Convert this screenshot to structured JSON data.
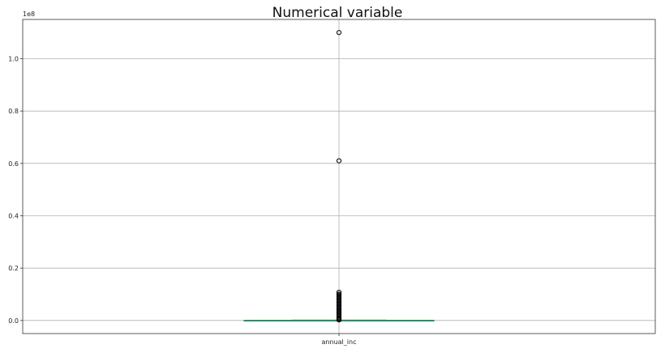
{
  "chart_data": {
    "type": "box",
    "title": "Numerical variable",
    "offset_label": "1e8",
    "xlabel": "",
    "ylabel": "",
    "ylim": [
      -0.05,
      1.15
    ],
    "yticks": [
      0.0,
      0.2,
      0.4,
      0.6,
      0.8,
      1.0
    ],
    "ytick_labels": [
      "0.0",
      "0.2",
      "0.4",
      "0.6",
      "0.8",
      "1.0"
    ],
    "grid": true,
    "categories": [
      "annual_inc"
    ],
    "series": [
      {
        "category": "annual_inc",
        "q1": 0.00045,
        "median": 0.0006,
        "q3": 0.0009,
        "whisker_low": 0.0,
        "whisker_high": 0.00157,
        "outliers": [
          1.1,
          0.61,
          0.108,
          0.101,
          0.097,
          0.093,
          0.089,
          0.085,
          0.081,
          0.077,
          0.073,
          0.069,
          0.065,
          0.061,
          0.057,
          0.053,
          0.049,
          0.045,
          0.041,
          0.037,
          0.033,
          0.029,
          0.025,
          0.021,
          0.017,
          0.013,
          0.009,
          0.005,
          0.002
        ]
      }
    ],
    "colors": {
      "box": "#1f77b4",
      "median": "#2ca02c",
      "whisker": "#000000",
      "grid": "#b0b0b0",
      "axes": "#333333"
    }
  }
}
